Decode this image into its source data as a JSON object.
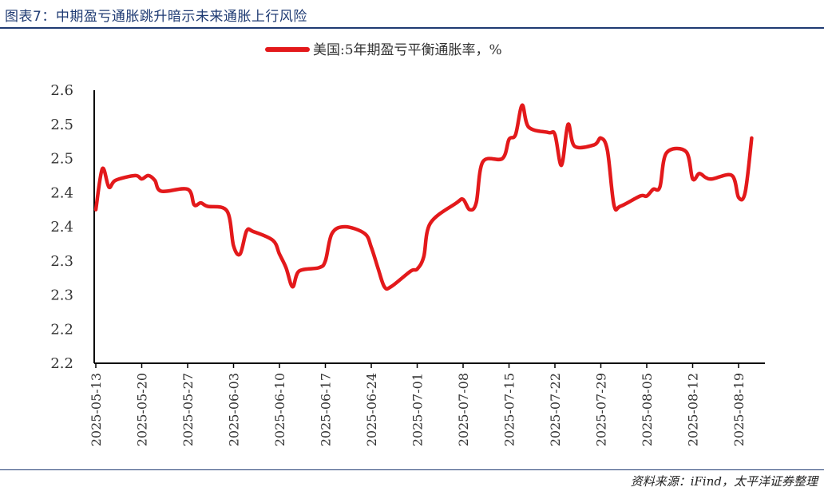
{
  "figure_title": "图表7：中期盈亏通胀跳升暗示未来通胀上行风险",
  "source_note": "资料来源：iFind，太平洋证券整理",
  "chart_data": {
    "type": "line",
    "legend_label": "美国:5年期盈亏平衡通胀率，%",
    "legend_position": "top-center",
    "line_color": "#e3191b",
    "grid": false,
    "ylim": [
      2.2,
      2.6
    ],
    "y_tick_values": [
      2.2,
      2.25,
      2.3,
      2.35,
      2.4,
      2.45,
      2.5,
      2.55,
      2.6
    ],
    "y_tick_labels": [
      "2.2",
      "2.2",
      "2.3",
      "2.3",
      "2.4",
      "2.4",
      "2.5",
      "2.5",
      "2.6"
    ],
    "x_tick_labels": [
      "2025-05-13",
      "2025-05-20",
      "2025-05-27",
      "2025-06-03",
      "2025-06-10",
      "2025-06-17",
      "2025-06-24",
      "2025-07-01",
      "2025-07-08",
      "2025-07-15",
      "2025-07-22",
      "2025-07-29",
      "2025-08-05",
      "2025-08-12",
      "2025-08-19"
    ],
    "series": [
      {
        "name": "美国:5年期盈亏平衡通胀率，%",
        "x": [
          "2025-05-13",
          "2025-05-14",
          "2025-05-15",
          "2025-05-16",
          "2025-05-19",
          "2025-05-20",
          "2025-05-21",
          "2025-05-22",
          "2025-05-23",
          "2025-05-27",
          "2025-05-28",
          "2025-05-29",
          "2025-05-30",
          "2025-06-02",
          "2025-06-03",
          "2025-06-04",
          "2025-06-05",
          "2025-06-06",
          "2025-06-09",
          "2025-06-10",
          "2025-06-11",
          "2025-06-12",
          "2025-06-13",
          "2025-06-16",
          "2025-06-17",
          "2025-06-18",
          "2025-06-20",
          "2025-06-23",
          "2025-06-24",
          "2025-06-25",
          "2025-06-26",
          "2025-06-27",
          "2025-06-30",
          "2025-07-01",
          "2025-07-02",
          "2025-07-03",
          "2025-07-07",
          "2025-07-08",
          "2025-07-09",
          "2025-07-10",
          "2025-07-11",
          "2025-07-14",
          "2025-07-15",
          "2025-07-16",
          "2025-07-17",
          "2025-07-18",
          "2025-07-21",
          "2025-07-22",
          "2025-07-23",
          "2025-07-24",
          "2025-07-25",
          "2025-07-28",
          "2025-07-29",
          "2025-07-30",
          "2025-07-31",
          "2025-08-01",
          "2025-08-04",
          "2025-08-05",
          "2025-08-06",
          "2025-08-07",
          "2025-08-08",
          "2025-08-11",
          "2025-08-12",
          "2025-08-13",
          "2025-08-14",
          "2025-08-15",
          "2025-08-18",
          "2025-08-19",
          "2025-08-20",
          "2025-08-21"
        ],
        "y": [
          2.425,
          2.485,
          2.458,
          2.468,
          2.475,
          2.47,
          2.475,
          2.468,
          2.452,
          2.455,
          2.432,
          2.435,
          2.43,
          2.423,
          2.372,
          2.36,
          2.394,
          2.393,
          2.38,
          2.36,
          2.34,
          2.312,
          2.335,
          2.34,
          2.35,
          2.39,
          2.4,
          2.39,
          2.37,
          2.34,
          2.312,
          2.312,
          2.335,
          2.338,
          2.356,
          2.405,
          2.435,
          2.44,
          2.425,
          2.435,
          2.495,
          2.5,
          2.528,
          2.535,
          2.578,
          2.546,
          2.538,
          2.535,
          2.49,
          2.55,
          2.518,
          2.52,
          2.53,
          2.512,
          2.432,
          2.43,
          2.445,
          2.445,
          2.455,
          2.458,
          2.508,
          2.51,
          2.47,
          2.478,
          2.472,
          2.47,
          2.475,
          2.443,
          2.45,
          2.53
        ]
      }
    ]
  }
}
